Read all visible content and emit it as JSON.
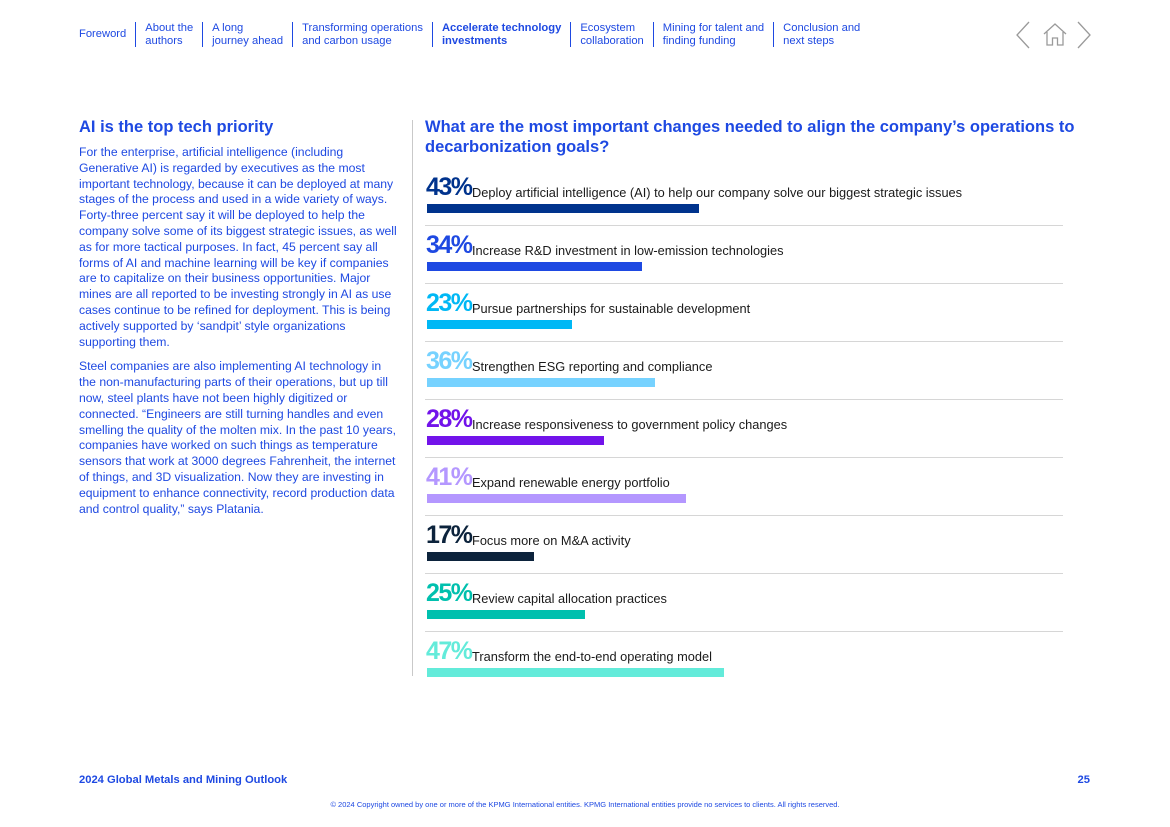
{
  "nav": {
    "items": [
      {
        "label": "Foreword",
        "active": false
      },
      {
        "label": "About the\nauthors",
        "active": false
      },
      {
        "label": "A long\njourney ahead",
        "active": false
      },
      {
        "label": "Transforming operations\nand carbon usage",
        "active": false
      },
      {
        "label": "Accelerate technology\ninvestments",
        "active": true
      },
      {
        "label": "Ecosystem\ncollaboration",
        "active": false
      },
      {
        "label": "Mining for talent and\nfinding funding",
        "active": false
      },
      {
        "label": "Conclusion and\nnext steps",
        "active": false
      }
    ],
    "icons": [
      "chevron-left-icon",
      "home-icon",
      "chevron-right-icon"
    ]
  },
  "left": {
    "heading": "AI is the top tech priority",
    "paragraphs": [
      "For the enterprise, artificial intelligence (including Generative AI) is regarded by executives as the most important technology, because it can be deployed at many stages of the process and used in a wide variety of ways. Forty-three percent say it will be deployed to help the company solve some of its biggest strategic issues, as well as for more tactical purposes. In fact, 45 percent say all forms of AI and machine learning will be key if companies are to capitalize on their business opportunities. Major mines are all reported to be investing strongly in AI as use cases continue to be refined for deployment. This is being actively supported by ‘sandpit’ style organizations supporting them.",
      "Steel companies are also implementing AI technology in the non-manufacturing parts of their operations, but up till now, steel plants have not been highly digitized or connected. “Engineers are still turning handles and even smelling the quality of the molten mix. In the past 10 years, companies have worked on such things as temperature sensors that work at 3000 degrees Fahrenheit, the internet of things, and 3D visualization. Now they are investing in equipment to enhance connectivity, record production data and control quality,” says Platania."
    ]
  },
  "chart_data": {
    "type": "bar",
    "orientation": "horizontal",
    "title": "What are the most important changes needed to align the company’s operations to decarbonization goals?",
    "xlabel": "",
    "ylabel": "",
    "unit": "%",
    "xlim": [
      0,
      100
    ],
    "grid": false,
    "legend": "none",
    "categories": [
      "Deploy artificial intelligence (AI) to help our company solve our biggest strategic issues",
      "Increase R&D investment in low-emission technologies",
      "Pursue partnerships for sustainable development",
      "Strengthen ESG reporting and compliance",
      "Increase responsiveness to government policy changes",
      "Expand renewable energy portfolio",
      "Focus more on M&A activity",
      "Review capital allocation practices",
      "Transform the end-to-end operating model"
    ],
    "values": [
      43,
      34,
      23,
      36,
      28,
      41,
      17,
      25,
      47
    ],
    "value_labels": [
      "43%",
      "34%",
      "23%",
      "36%",
      "28%",
      "41%",
      "17%",
      "25%",
      "47%"
    ],
    "colors": [
      "#00338d",
      "#1e49e2",
      "#00b8f5",
      "#76d2ff",
      "#7213ea",
      "#b497ff",
      "#0c233c",
      "#00c0ae",
      "#63ebda"
    ]
  },
  "footer": {
    "title": "2024 Global Metals and Mining Outlook",
    "page": "25",
    "copyright": "© 2024 Copyright owned by one or more of the KPMG International entities. KPMG International entities provide no services to clients. All rights reserved."
  }
}
